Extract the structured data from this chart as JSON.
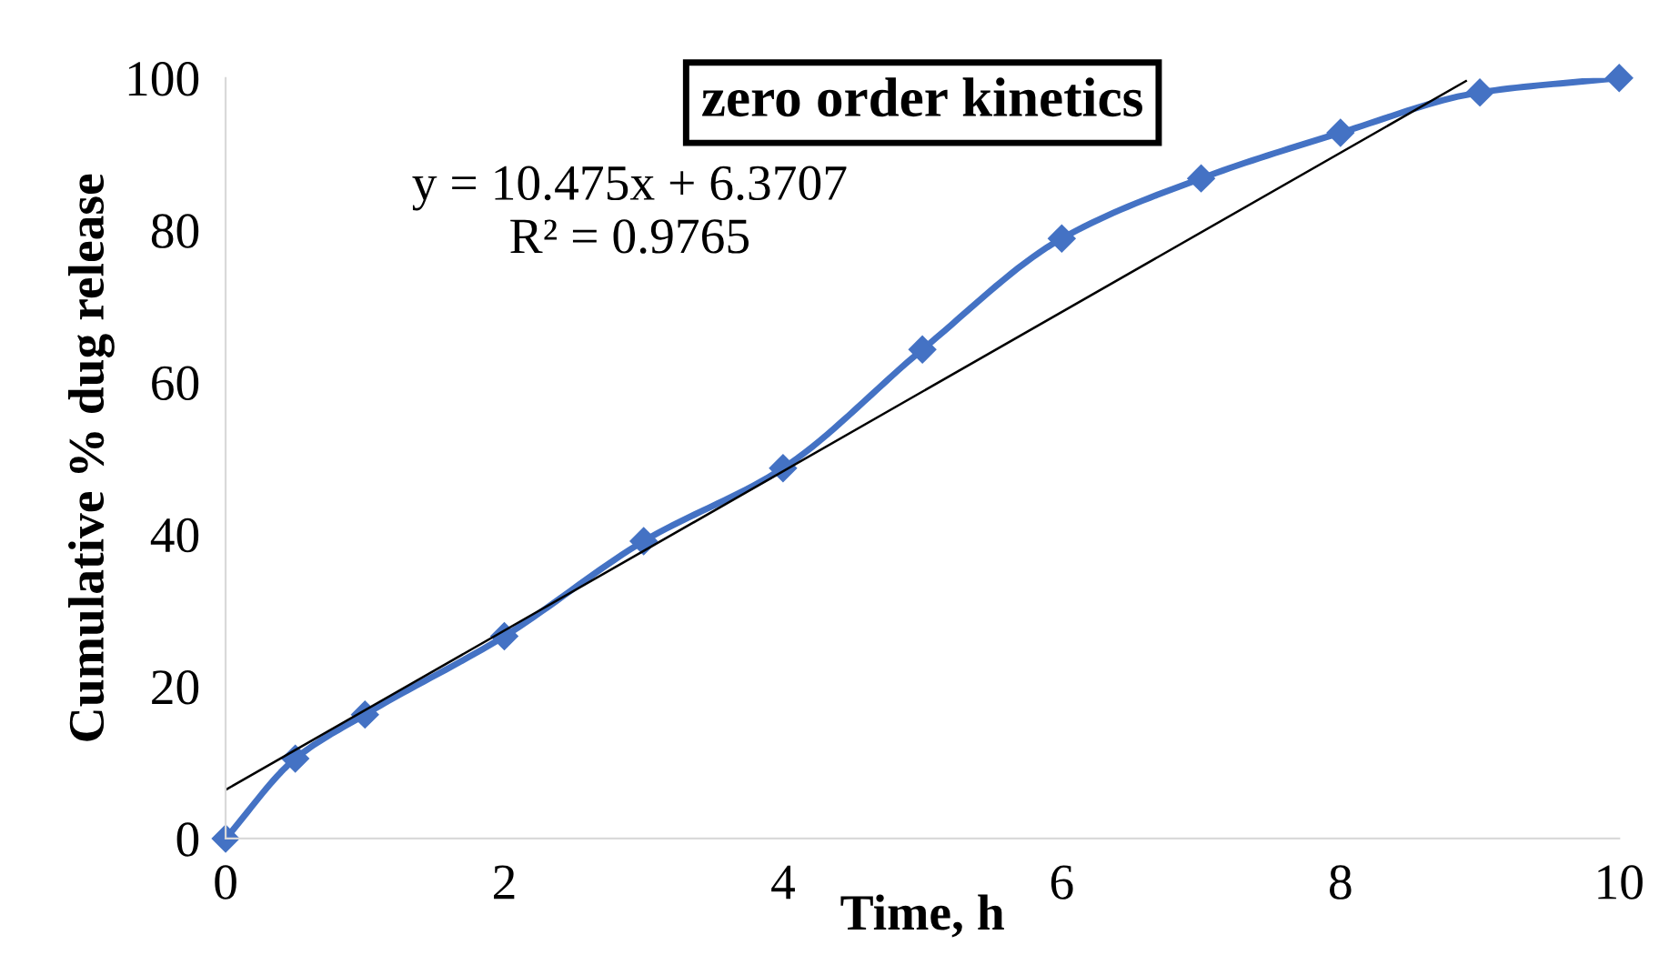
{
  "chart_data": {
    "type": "line",
    "title": "zero order kinetics",
    "xlabel": "Time, h",
    "ylabel": "Cumulative % dug release",
    "annotations": [
      "y = 10.475x + 6.3707",
      "R² = 0.9765"
    ],
    "x": [
      0,
      0.5,
      1,
      2,
      3,
      4,
      5,
      6,
      7,
      8,
      9,
      10
    ],
    "series": [
      {
        "color": "#4472c4",
        "marker": "diamond",
        "values": [
          0,
          10.5,
          16.3,
          26.6,
          39.1,
          48.7,
          64.3,
          78.9,
          86.8,
          92.8,
          98.1,
          100
        ]
      },
      {
        "type": "line",
        "color": "#000000",
        "marker": "none",
        "x": [
          0,
          8.9
        ],
        "values": [
          6.4,
          99.6
        ]
      }
    ],
    "xlim": [
      0,
      10
    ],
    "ylim": [
      0,
      100
    ],
    "xticks": [
      0,
      2,
      4,
      6,
      8,
      10
    ],
    "yticks": [
      0,
      20,
      40,
      60,
      80,
      100
    ],
    "grid": false,
    "legend": false
  }
}
